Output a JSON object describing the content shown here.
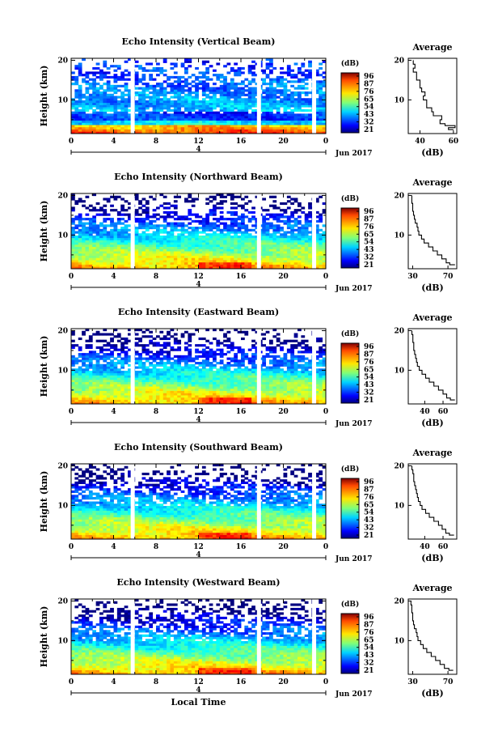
{
  "chart_data": [
    {
      "type": "heatmap",
      "title": "Echo Intensity (Vertical Beam)",
      "ylabel": "Height (km)",
      "xticks": [
        "0",
        "4",
        "8",
        "12",
        "16",
        "20",
        "0"
      ],
      "yticks": [
        "10",
        "20"
      ],
      "date_marker": "4",
      "date_label": "Jun 2017",
      "xlim": [
        0,
        24
      ],
      "ylim": [
        1.5,
        20.5
      ],
      "colorbar": {
        "label": "(dB)",
        "ticks": [
          "96",
          "87",
          "76",
          "65",
          "54",
          "43",
          "32",
          "21"
        ],
        "range": [
          21,
          96
        ]
      },
      "data_gaps_hours": [
        5.8,
        17.7,
        22.9
      ],
      "profile": {
        "title": "Average",
        "xlabel": "(dB)",
        "xticks": [
          "40",
          "60"
        ],
        "xlim": [
          33,
          62
        ],
        "height_km": [
          2.5,
          3,
          3.5,
          4,
          5,
          6,
          7,
          8,
          9,
          10,
          11,
          12,
          13,
          14,
          15,
          16,
          17,
          18,
          19,
          20
        ],
        "db": [
          60,
          57,
          61,
          55,
          52,
          53,
          48,
          47,
          44,
          44,
          42,
          43,
          41,
          40,
          40,
          38,
          38,
          36,
          37,
          36
        ]
      }
    },
    {
      "type": "heatmap",
      "title": "Echo Intensity (Northward Beam)",
      "ylabel": "Height (km)",
      "xticks": [
        "0",
        "4",
        "8",
        "12",
        "16",
        "20",
        "0"
      ],
      "yticks": [
        "10",
        "20"
      ],
      "date_marker": "4",
      "date_label": "Jun 2017",
      "xlim": [
        0,
        24
      ],
      "ylim": [
        1.5,
        20.5
      ],
      "colorbar": {
        "label": "(dB)",
        "ticks": [
          "96",
          "87",
          "76",
          "65",
          "54",
          "43",
          "32",
          "21"
        ],
        "range": [
          21,
          96
        ]
      },
      "data_gaps_hours": [
        5.8,
        17.7,
        22.9
      ],
      "profile": {
        "title": "Average",
        "xlabel": "(dB)",
        "xticks": [
          "30",
          "70"
        ],
        "xlim": [
          25,
          80
        ],
        "height_km": [
          2.5,
          3,
          4,
          5,
          6,
          7,
          8,
          9,
          10,
          11,
          12,
          13,
          14,
          15,
          16,
          17,
          18,
          19,
          20
        ],
        "db": [
          78,
          72,
          68,
          63,
          58,
          53,
          48,
          43,
          40,
          37,
          36,
          35,
          33,
          32,
          31,
          30,
          30,
          29,
          29
        ]
      }
    },
    {
      "type": "heatmap",
      "title": "Echo Intensity (Eastward Beam)",
      "ylabel": "Height (km)",
      "xticks": [
        "0",
        "4",
        "8",
        "12",
        "16",
        "20",
        "0"
      ],
      "yticks": [
        "10",
        "20"
      ],
      "date_marker": "4",
      "date_label": "Jun 2017",
      "xlim": [
        0,
        24
      ],
      "ylim": [
        1.5,
        20.5
      ],
      "colorbar": {
        "label": "(dB)",
        "ticks": [
          "96",
          "87",
          "76",
          "65",
          "54",
          "43",
          "32",
          "21"
        ],
        "range": [
          21,
          96
        ]
      },
      "data_gaps_hours": [
        5.8,
        17.7,
        22.9
      ],
      "profile": {
        "title": "Average",
        "xlabel": "(dB)",
        "xticks": [
          "40",
          "60"
        ],
        "xlim": [
          22,
          75
        ],
        "height_km": [
          2.5,
          3,
          4,
          5,
          6,
          7,
          8,
          9,
          10,
          11,
          12,
          13,
          14,
          15,
          16,
          17,
          18,
          19,
          20
        ],
        "db": [
          73,
          68,
          64,
          60,
          55,
          50,
          45,
          41,
          37,
          34,
          32,
          31,
          30,
          29,
          28,
          28,
          27,
          27,
          26
        ]
      }
    },
    {
      "type": "heatmap",
      "title": "Echo Intensity (Southward Beam)",
      "ylabel": "Height (km)",
      "xticks": [
        "0",
        "4",
        "8",
        "12",
        "16",
        "20",
        "0"
      ],
      "yticks": [
        "10",
        "20"
      ],
      "date_marker": "4",
      "date_label": "Jun 2017",
      "xlim": [
        0,
        24
      ],
      "ylim": [
        1.5,
        20.5
      ],
      "colorbar": {
        "label": "(dB)",
        "ticks": [
          "96",
          "87",
          "76",
          "65",
          "54",
          "43",
          "32",
          "21"
        ],
        "range": [
          21,
          96
        ]
      },
      "data_gaps_hours": [
        5.8,
        17.7,
        22.9
      ],
      "profile": {
        "title": "Average",
        "xlabel": "(dB)",
        "xticks": [
          "40",
          "60"
        ],
        "xlim": [
          22,
          75
        ],
        "height_km": [
          2.5,
          3,
          4,
          5,
          6,
          7,
          8,
          9,
          10,
          11,
          12,
          13,
          14,
          15,
          16,
          17,
          18,
          19,
          20
        ],
        "db": [
          72,
          67,
          63,
          59,
          55,
          50,
          45,
          41,
          37,
          35,
          33,
          32,
          31,
          30,
          29,
          28,
          28,
          27,
          26
        ]
      }
    },
    {
      "type": "heatmap",
      "title": "Echo Intensity (Westward Beam)",
      "ylabel": "Height (km)",
      "xlabel": "Local Time",
      "xticks": [
        "0",
        "4",
        "8",
        "12",
        "16",
        "20",
        "0"
      ],
      "yticks": [
        "10",
        "20"
      ],
      "date_marker": "4",
      "date_label": "Jun 2017",
      "xlim": [
        0,
        24
      ],
      "ylim": [
        1.5,
        20.5
      ],
      "colorbar": {
        "label": "(dB)",
        "ticks": [
          "96",
          "87",
          "76",
          "65",
          "54",
          "43",
          "32",
          "21"
        ],
        "range": [
          21,
          96
        ]
      },
      "data_gaps_hours": [
        5.8,
        17.7,
        22.9
      ],
      "profile": {
        "title": "Average",
        "xlabel": "(dB)",
        "xticks": [
          "30",
          "70"
        ],
        "xlim": [
          25,
          80
        ],
        "height_km": [
          2.5,
          3,
          4,
          5,
          6,
          7,
          8,
          9,
          10,
          11,
          12,
          13,
          14,
          15,
          16,
          17,
          18,
          19,
          20
        ],
        "db": [
          76,
          71,
          66,
          61,
          56,
          51,
          46,
          42,
          39,
          36,
          35,
          34,
          32,
          31,
          30,
          30,
          29,
          29,
          28
        ]
      }
    }
  ]
}
